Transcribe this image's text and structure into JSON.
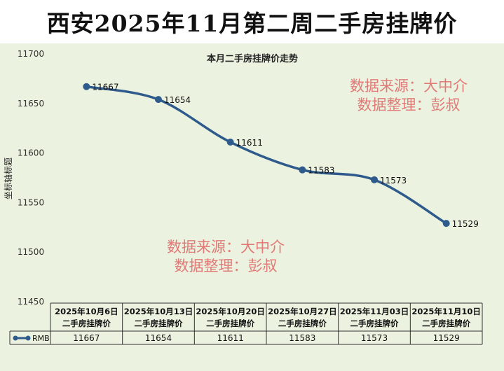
{
  "banner": {
    "title": "西安2025年11月第二周二手房挂牌价"
  },
  "chart_data": {
    "type": "line",
    "title": "本月二手房挂牌价走势",
    "ylabel": "坐标轴标题",
    "xlabel": "",
    "ylim": [
      11450,
      11700
    ],
    "yticks": [
      11450,
      11500,
      11550,
      11600,
      11650,
      11700
    ],
    "categories": [
      [
        "2025年10月6日",
        "二手房挂牌价"
      ],
      [
        "2025年10月13日",
        "二手房挂牌价"
      ],
      [
        "2025年10月20日",
        "二手房挂牌价"
      ],
      [
        "2025年10月27日",
        "二手房挂牌价"
      ],
      [
        "2025年11月03日",
        "二手房挂牌价"
      ],
      [
        "2025年11月10日",
        "二手房挂牌价"
      ]
    ],
    "series": [
      {
        "name": "RMB",
        "values": [
          11667,
          11654,
          11611,
          11583,
          11573,
          11529
        ]
      }
    ],
    "smooth": true,
    "grid": false,
    "legend": "data-table",
    "line_color": "#2e5a8c",
    "annotations": [
      [
        "数据来源：大中介",
        "数据整理：彭叔"
      ],
      [
        "数据来源：大中介",
        "数据整理：彭叔"
      ]
    ],
    "annotation_color": "#e07b78"
  }
}
